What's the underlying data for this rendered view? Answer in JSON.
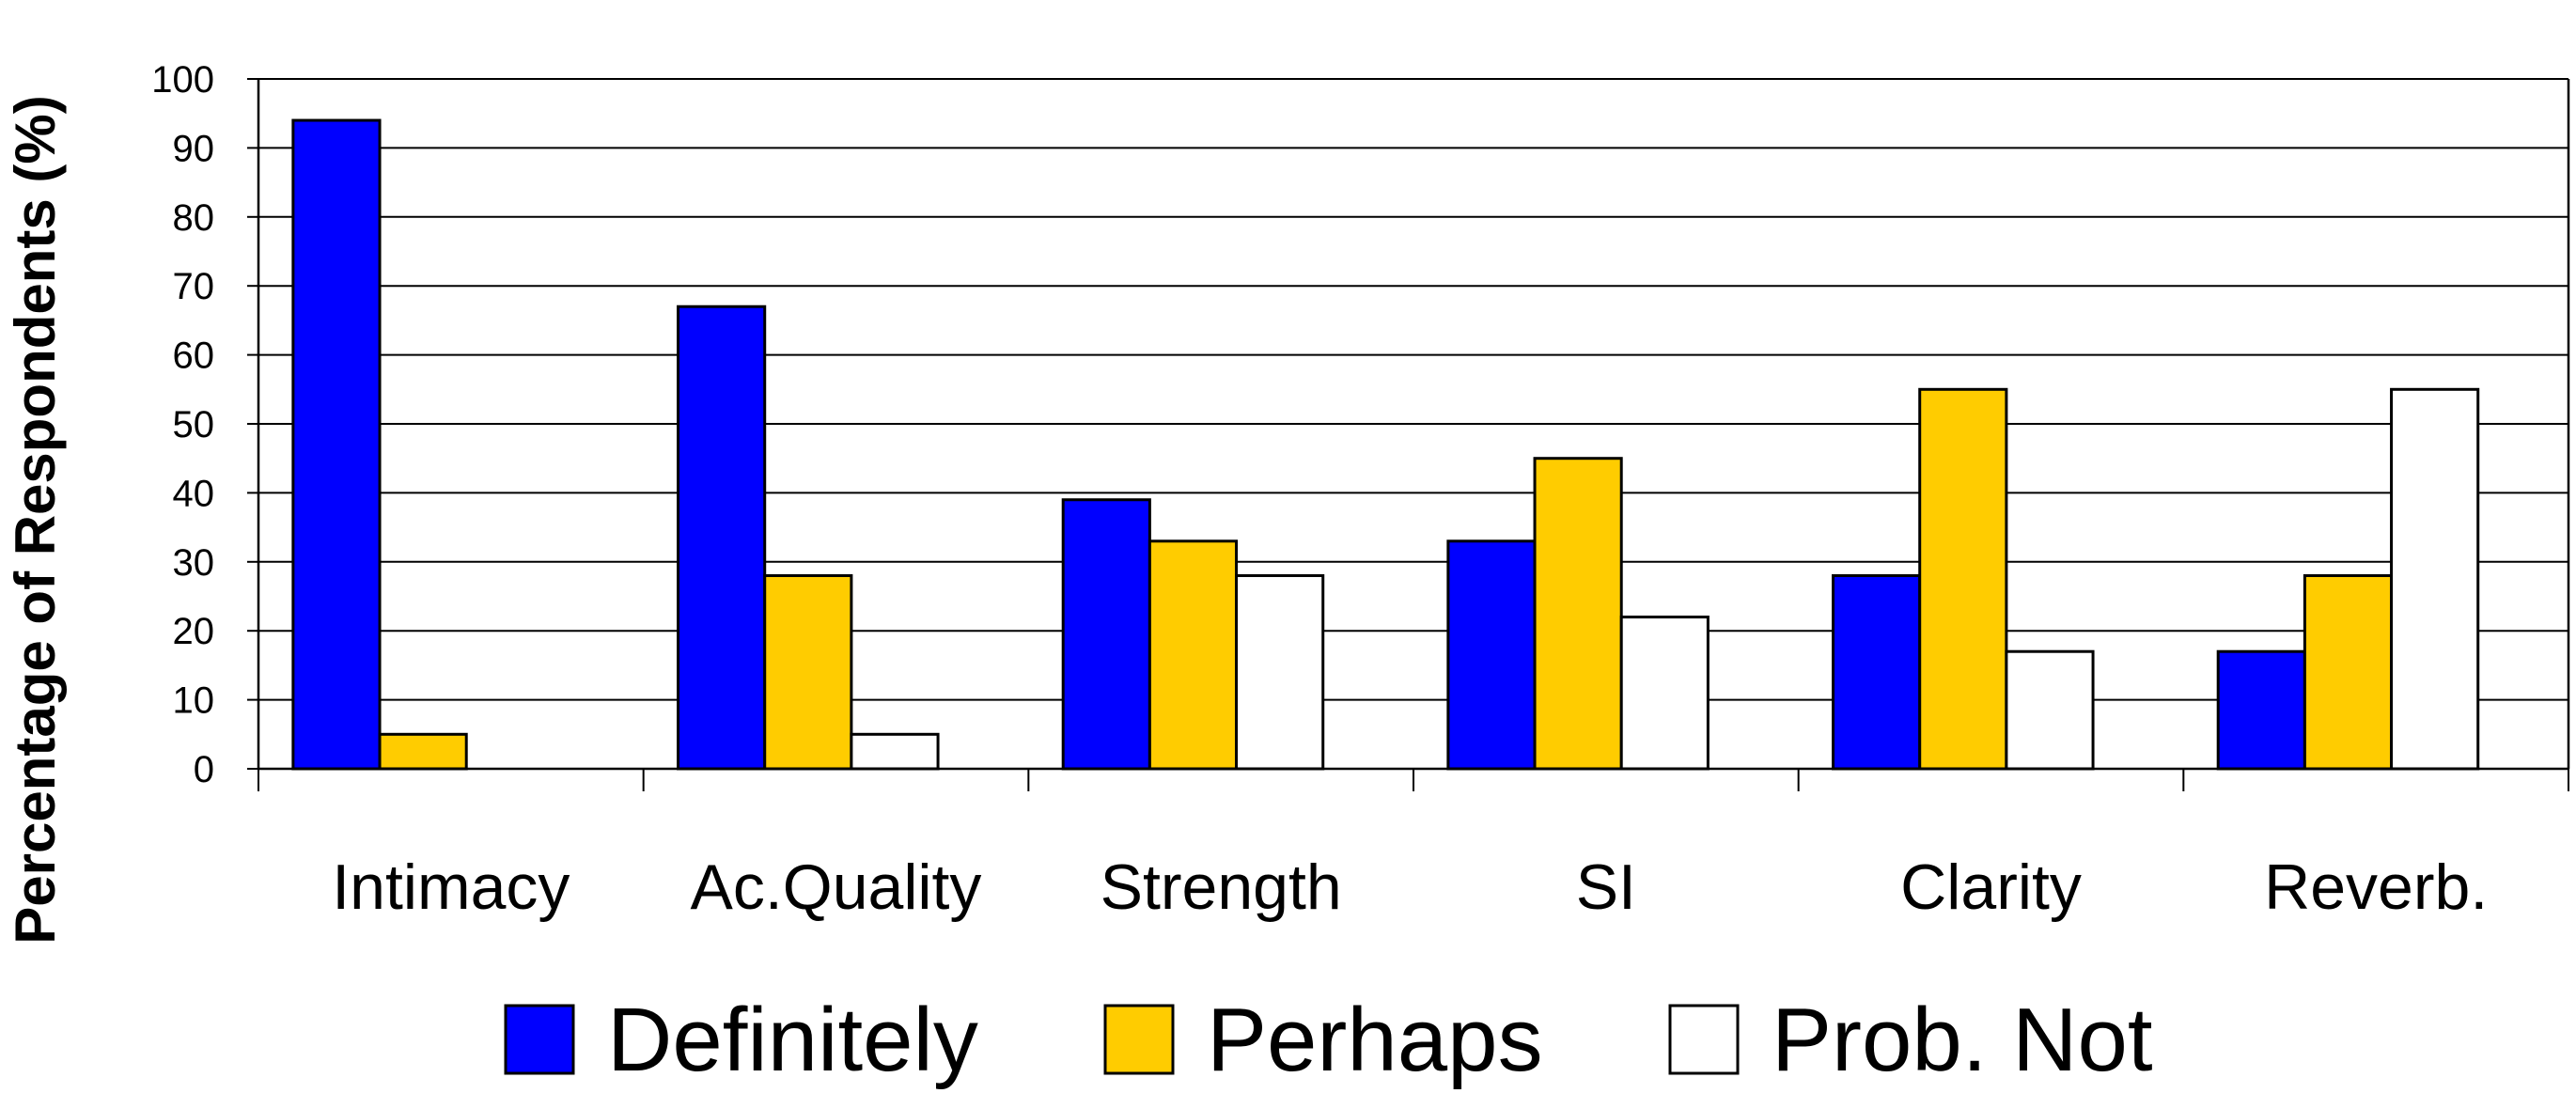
{
  "chart_data": {
    "type": "bar",
    "title": "",
    "xlabel": "",
    "ylabel": "Percentage of Respondents (%)",
    "ylim": [
      0,
      100
    ],
    "yticks": [
      0,
      10,
      20,
      30,
      40,
      50,
      60,
      70,
      80,
      90,
      100
    ],
    "grid": true,
    "legend_position": "bottom",
    "categories": [
      "Intimacy",
      "Ac.Quality",
      "Strength",
      "SI",
      "Clarity",
      "Reverb."
    ],
    "series": [
      {
        "name": "Definitely",
        "color": "#0000ff",
        "values": [
          94,
          67,
          39,
          33,
          28,
          17
        ]
      },
      {
        "name": "Perhaps",
        "color": "#ffcc00",
        "values": [
          5,
          28,
          33,
          45,
          55,
          28
        ]
      },
      {
        "name": "Prob. Not",
        "color": "#ffffff",
        "values": [
          0,
          5,
          28,
          22,
          17,
          55
        ]
      }
    ]
  }
}
